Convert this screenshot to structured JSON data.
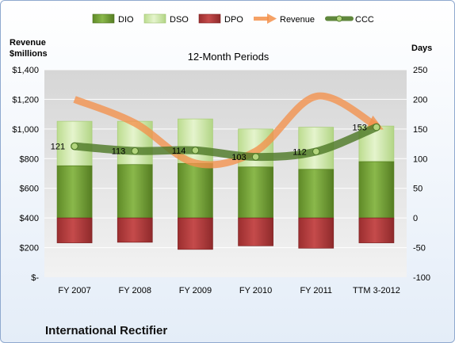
{
  "chart_data": {
    "type": "bar",
    "title": "International Rectifier",
    "subtitle": "12-Month Periods",
    "categories": [
      "FY 2007",
      "FY 2008",
      "FY 2009",
      "FY 2010",
      "FY 2011",
      "TTM 3-2012"
    ],
    "left_axis": {
      "label": "Revenue\n$millions",
      "range": [
        0,
        1400
      ],
      "ticks": [
        "$-",
        "$200",
        "$400",
        "$600",
        "$800",
        "$1,000",
        "$1,200",
        "$1,400"
      ]
    },
    "right_axis": {
      "label": "Days",
      "range": [
        -100,
        250
      ],
      "ticks": [
        "-100",
        "-50",
        "0",
        "50",
        "100",
        "150",
        "200",
        "250"
      ]
    },
    "series": [
      {
        "name": "DIO",
        "type": "stacked-bar",
        "axis": "days",
        "values": [
          88,
          90,
          92,
          86,
          82,
          95
        ],
        "color": "#77a33a"
      },
      {
        "name": "DSO",
        "type": "stacked-bar",
        "axis": "days",
        "values": [
          75,
          73,
          75,
          64,
          71,
          60
        ],
        "color": "#cde8a6"
      },
      {
        "name": "DPO",
        "type": "bar",
        "axis": "days",
        "values": [
          -42,
          -41,
          -53,
          -47,
          -51,
          -42
        ],
        "color": "#b8393a"
      },
      {
        "name": "Revenue",
        "type": "line",
        "axis": "revenue",
        "values": [
          1200,
          1040,
          770,
          850,
          1220,
          1020
        ],
        "color": "#f3914b"
      },
      {
        "name": "CCC",
        "type": "line",
        "axis": "days",
        "values": [
          121,
          113,
          114,
          103,
          112,
          153
        ],
        "color": "#4f7a28"
      }
    ],
    "data_labels": [
      "121",
      "113",
      "114",
      "103",
      "112",
      "153"
    ],
    "grid": true,
    "legend": "top"
  }
}
